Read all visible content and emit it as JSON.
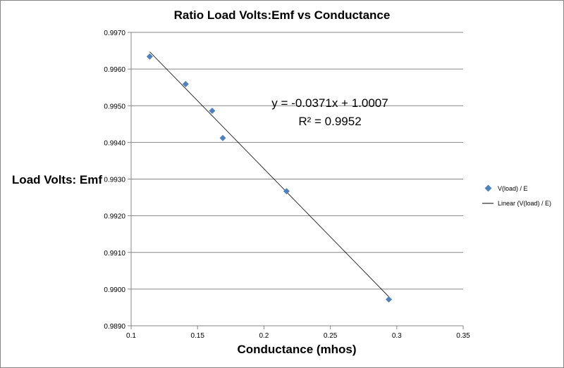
{
  "chart_data": {
    "type": "scatter",
    "title": "Ratio Load Volts:Emf vs Conductance",
    "xlabel": "Conductance (mhos)",
    "ylabel": "Load Volts: Emf",
    "xlim": [
      0.1,
      0.35
    ],
    "ylim": [
      0.989,
      0.997
    ],
    "x_ticks": [
      "0.1",
      "0.15",
      "0.2",
      "0.25",
      "0.3",
      "0.35"
    ],
    "y_ticks": [
      "0.9890",
      "0.9900",
      "0.9910",
      "0.9920",
      "0.9930",
      "0.9940",
      "0.9950",
      "0.9960",
      "0.9970"
    ],
    "grid": "horizontal",
    "legend_position": "right",
    "series": [
      {
        "name": "V(load) / E",
        "color": "#4F81BD",
        "marker": "diamond",
        "x": [
          0.114,
          0.141,
          0.161,
          0.169,
          0.217,
          0.294
        ],
        "y": [
          0.99634,
          0.99559,
          0.99486,
          0.99412,
          0.99267,
          0.98972
        ]
      }
    ],
    "trendline": {
      "name": "Linear (V(load) / E)",
      "color": "#000000",
      "slope": -0.0371,
      "intercept": 1.0007,
      "x_range": [
        0.114,
        0.294
      ],
      "equation_text": "y = -0.0371x + 1.0007",
      "r2_text": "R² = 0.9952"
    }
  }
}
